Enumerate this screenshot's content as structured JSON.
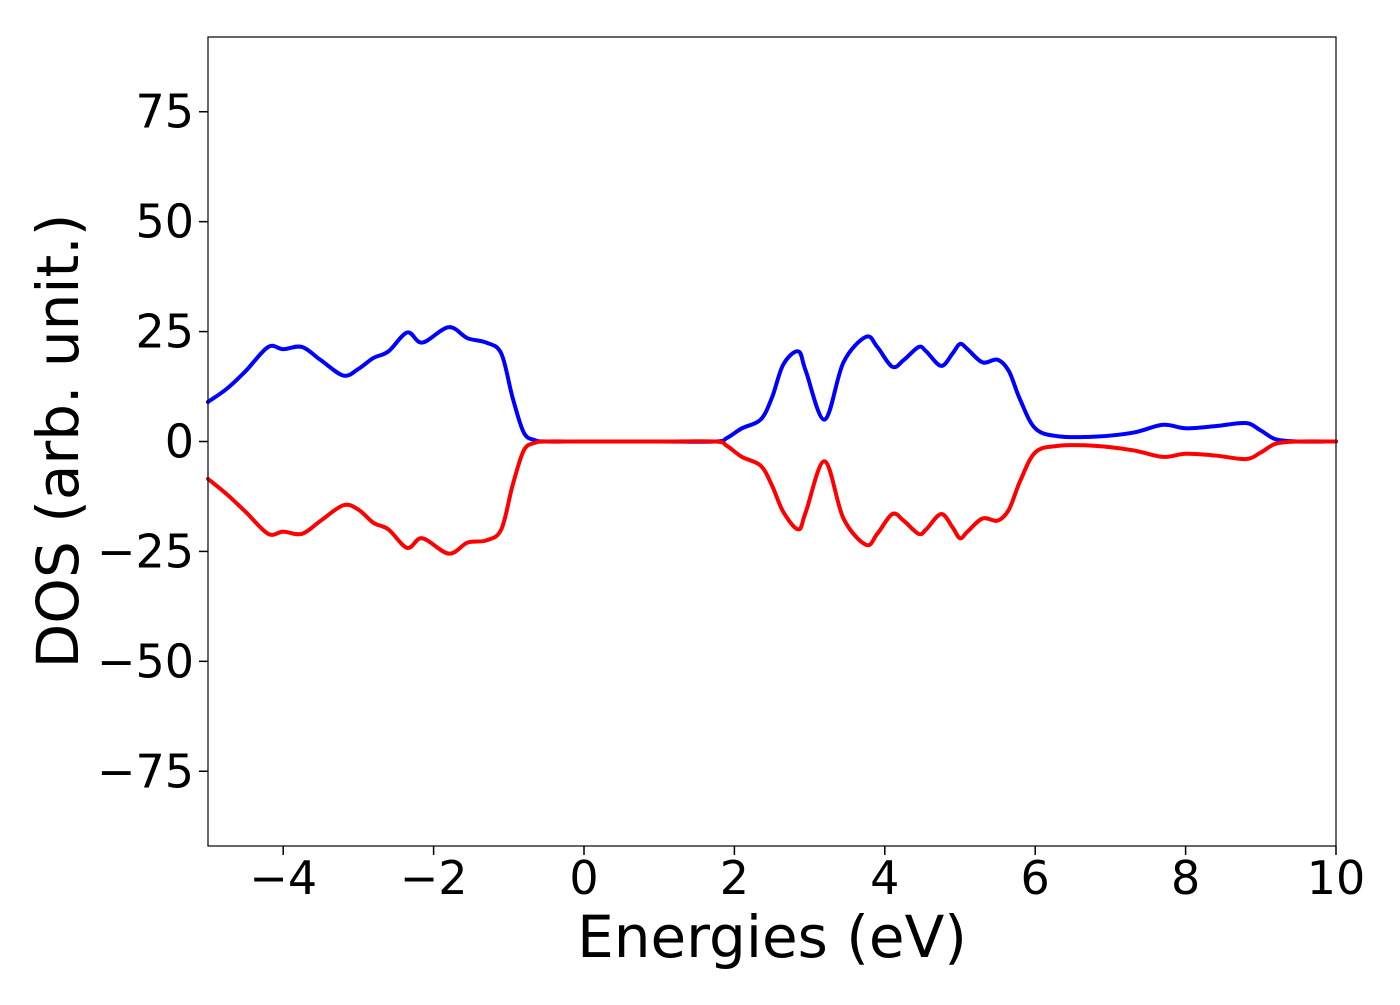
{
  "chart_data": {
    "type": "line",
    "title": "",
    "xlabel": "Energies (eV)",
    "ylabel": "DOS (arb. unit.)",
    "xlim": [
      -5,
      10
    ],
    "ylim": [
      -92,
      92
    ],
    "xticks": [
      -4,
      -2,
      0,
      2,
      4,
      6,
      8,
      10
    ],
    "xtick_labels": [
      "−4",
      "−2",
      "0",
      "2",
      "4",
      "6",
      "8",
      "10"
    ],
    "yticks": [
      75,
      50,
      25,
      0,
      -25,
      -50,
      -75
    ],
    "ytick_labels": [
      "75",
      "50",
      "25",
      "0",
      "−25",
      "−50",
      "−75"
    ],
    "grid": false,
    "legend": "none",
    "series": [
      {
        "color": "#0000ff",
        "x": [
          -5.0,
          -4.75,
          -4.5,
          -4.2,
          -4.0,
          -3.75,
          -3.5,
          -3.2,
          -3.0,
          -2.8,
          -2.6,
          -2.35,
          -2.15,
          -1.8,
          -1.55,
          -1.3,
          -1.1,
          -0.95,
          -0.8,
          -0.65,
          -0.5,
          0.0,
          1.0,
          1.75,
          1.9,
          2.1,
          2.35,
          2.5,
          2.65,
          2.85,
          2.95,
          3.2,
          3.45,
          3.75,
          3.9,
          4.1,
          4.25,
          4.45,
          4.55,
          4.75,
          4.9,
          5.0,
          5.1,
          5.3,
          5.5,
          5.65,
          5.8,
          6.0,
          6.3,
          6.8,
          7.3,
          7.7,
          8.0,
          8.4,
          8.8,
          9.0,
          9.2,
          9.5,
          10.0
        ],
        "y": [
          9,
          12,
          16,
          21.5,
          21,
          21.5,
          18.5,
          15,
          16.5,
          19,
          20.5,
          24.8,
          22.5,
          26,
          23.5,
          22.5,
          20,
          10,
          2,
          0.3,
          0,
          0,
          0,
          0,
          0.8,
          3,
          5,
          10,
          17.5,
          20.5,
          16,
          5,
          18,
          23.8,
          21.5,
          17,
          18.5,
          21.5,
          20.5,
          17.2,
          20,
          22.2,
          21,
          18,
          18.6,
          16,
          9.5,
          3,
          1.2,
          1.1,
          2,
          3.8,
          3,
          3.5,
          4.2,
          2.5,
          0.5,
          0,
          0
        ]
      },
      {
        "color": "#ff0000",
        "x": [
          -5.0,
          -4.75,
          -4.5,
          -4.2,
          -4.0,
          -3.75,
          -3.5,
          -3.2,
          -3.0,
          -2.8,
          -2.6,
          -2.35,
          -2.15,
          -1.8,
          -1.55,
          -1.3,
          -1.1,
          -0.95,
          -0.8,
          -0.65,
          -0.5,
          0.0,
          1.0,
          1.75,
          1.9,
          2.1,
          2.35,
          2.5,
          2.65,
          2.85,
          2.95,
          3.2,
          3.45,
          3.75,
          3.9,
          4.1,
          4.25,
          4.45,
          4.55,
          4.75,
          4.9,
          5.0,
          5.1,
          5.3,
          5.5,
          5.65,
          5.8,
          6.0,
          6.3,
          6.8,
          7.3,
          7.7,
          8.0,
          8.4,
          8.8,
          9.0,
          9.2,
          9.5,
          10.0
        ],
        "y": [
          -8.5,
          -12,
          -16,
          -21,
          -20.5,
          -21,
          -18,
          -14.5,
          -15.5,
          -18.5,
          -20,
          -24.2,
          -22,
          -25.5,
          -23,
          -22.5,
          -20,
          -10,
          -2,
          -0.3,
          0,
          0,
          0,
          0,
          -1,
          -3.5,
          -5.5,
          -10,
          -16,
          -20,
          -16,
          -4.5,
          -17.5,
          -23.5,
          -21,
          -16.5,
          -18,
          -21,
          -20,
          -16.5,
          -19.5,
          -22,
          -20.5,
          -17.5,
          -18,
          -15.5,
          -9,
          -2.5,
          -1,
          -1,
          -2,
          -3.5,
          -2.8,
          -3.2,
          -4,
          -2.5,
          -0.5,
          0,
          0
        ]
      }
    ]
  }
}
